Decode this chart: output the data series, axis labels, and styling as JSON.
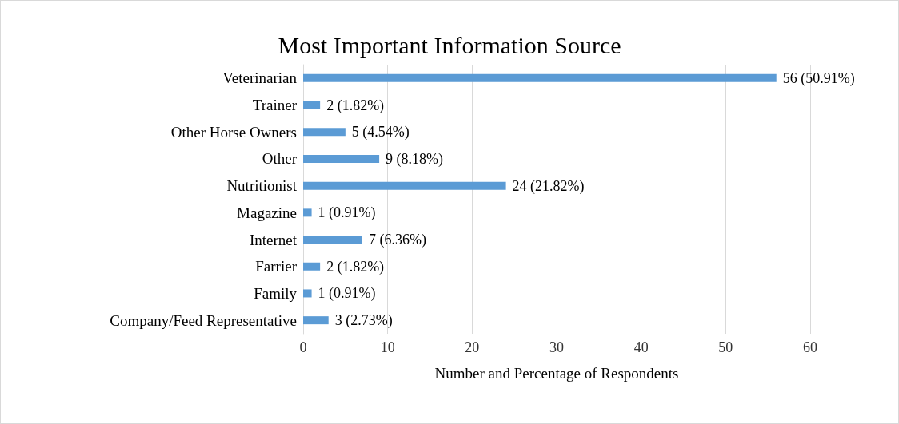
{
  "chart_data": {
    "type": "bar",
    "orientation": "horizontal",
    "title": "Most Important Information Source",
    "xlabel": "Number and Percentage of Respondents",
    "categories": [
      "Veterinarian",
      "Trainer",
      "Other Horse Owners",
      "Other",
      "Nutritionist",
      "Magazine",
      "Internet",
      "Farrier",
      "Family",
      "Company/Feed Representative"
    ],
    "values": [
      56,
      2,
      5,
      9,
      24,
      1,
      7,
      2,
      1,
      3
    ],
    "value_labels": [
      "56 (50.91%)",
      "2 (1.82%)",
      "5 (4.54%)",
      "9 (8.18%)",
      "24 (21.82%)",
      "1 (0.91%)",
      "7 (6.36%)",
      "2 (1.82%)",
      "1 (0.91%)",
      "3 (2.73%)"
    ],
    "color": "#5b9bd5",
    "xlim": [
      0,
      60
    ],
    "xticks": [
      0,
      10,
      20,
      30,
      40,
      50,
      60
    ],
    "grid": "x"
  }
}
